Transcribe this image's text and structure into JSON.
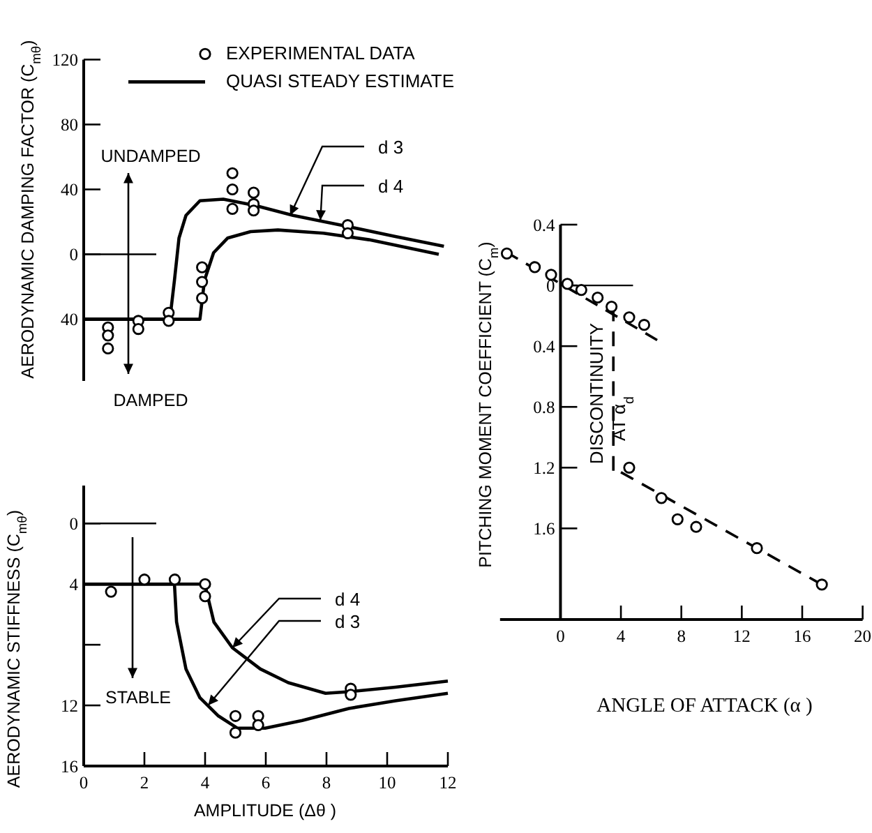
{
  "chart_data": [
    {
      "type": "line",
      "ylabel": "AERODYNAMIC DAMPING FACTOR (C$_{mθ}$)",
      "xlim": [
        0,
        12
      ],
      "ylim": [
        -78,
        120
      ],
      "yticks": [
        120,
        80,
        40,
        0,
        {
          "value": -40,
          "label": "40"
        }
      ],
      "tick_labels": "y",
      "legend": "top right",
      "ref_lines": [
        {
          "axis": "y",
          "value": 0
        }
      ],
      "annotations": [
        "UNDAMPED",
        "DAMPED",
        {
          "text": "d 3",
          "x": 6.8,
          "y": 24
        },
        {
          "text": "d 4",
          "x": 7.8,
          "y": 21
        }
      ],
      "series": [
        {
          "type": "scatter",
          "marker": "circle",
          "name": "EXPERIMENTAL DATA",
          "color": "#000000",
          "x": [
            0.8,
            0.8,
            0.8,
            1.8,
            1.8,
            2.8,
            2.8,
            3.9,
            3.9,
            3.9,
            4.9,
            4.9,
            4.9,
            5.6,
            5.6,
            5.6,
            8.7,
            8.7
          ],
          "values": [
            -45,
            -50,
            -58,
            -41,
            -46,
            -36,
            -41,
            -8,
            -17,
            -27,
            50,
            40,
            28,
            38,
            31,
            27,
            18,
            13
          ]
        },
        {
          "name": "QUASI STEADY ESTIMATE",
          "color": "#000000",
          "x": [
            0,
            2.84,
            2.99,
            3.14,
            3.37,
            3.83,
            4.6,
            5.67,
            6.9,
            8.74,
            10.27,
            11.87
          ],
          "values": [
            -40,
            -40,
            -16,
            10,
            24,
            33,
            34,
            30,
            24,
            17,
            11,
            5
          ]
        },
        {
          "color": "#000000",
          "x": [
            0,
            3.83,
            3.98,
            4.28,
            4.74,
            5.5,
            6.4,
            7.9,
            9.4,
            11.7
          ],
          "values": [
            -40,
            -40,
            -16,
            1,
            10,
            14,
            15,
            13,
            9,
            0
          ]
        }
      ]
    },
    {
      "type": "line",
      "xlabel": "AMPLITUDE (Δθ )",
      "ylabel": "AERODYNAMIC STIFFNESS (C$_{mθ}$)",
      "xlim": [
        0,
        12
      ],
      "xticks": [
        0,
        2,
        4,
        6,
        8,
        10,
        12
      ],
      "ylim": [
        16,
        -2.5
      ],
      "yticks": [
        0,
        4,
        {
          "value": 8,
          "label": null
        },
        12,
        16
      ],
      "ref_lines": [
        {
          "axis": "y",
          "value": 0
        }
      ],
      "annotations": [
        "STABLE",
        {
          "text": "d 4",
          "x": 4.9,
          "y": 8.2
        },
        {
          "text": "d 3",
          "x": 4.1,
          "y": 12.0
        }
      ],
      "series": [
        {
          "type": "scatter",
          "marker": "circle",
          "color": "#000000",
          "x": [
            0.9,
            2,
            3,
            4,
            4,
            5,
            5,
            5.75,
            5.75,
            8.8,
            8.8
          ],
          "values": [
            4.5,
            3.7,
            3.7,
            4,
            4.8,
            12.7,
            13.8,
            12.7,
            13.3,
            10.9,
            11.3
          ]
        },
        {
          "color": "#000000",
          "x": [
            0,
            3.99,
            4.29,
            4.9,
            5.82,
            6.74,
            7.97,
            8.74,
            10.27,
            12
          ],
          "values": [
            4,
            4,
            6.5,
            8.2,
            9.6,
            10.5,
            11.2,
            11.1,
            10.8,
            10.4
          ]
        },
        {
          "color": "#000000",
          "x": [
            0,
            2.99,
            3.06,
            3.37,
            3.83,
            4.44,
            5.06,
            5.98,
            7.2,
            8.74,
            10.27,
            12
          ],
          "values": [
            4,
            4,
            6.5,
            9.6,
            11.5,
            12.7,
            13.5,
            13.5,
            13.0,
            12.2,
            11.7,
            11.2
          ]
        }
      ]
    },
    {
      "type": "line",
      "xlabel": "ANGLE OF ATTACK (α )",
      "ylabel": "PITCHING MOMENT COEFFICIENT (C$_{m}$)",
      "xlim": [
        -4,
        20
      ],
      "xticks": [
        0,
        4,
        8,
        12,
        16,
        20
      ],
      "ylim": [
        -2.2,
        0.4
      ],
      "yticks": [
        {
          "value": 0.4,
          "label": "0.4"
        },
        0,
        {
          "value": -0.4,
          "label": "0.4"
        },
        {
          "value": -0.8,
          "label": "0.8"
        },
        {
          "value": -1.2,
          "label": "1.2"
        },
        {
          "value": -1.6,
          "label": "1.6"
        }
      ],
      "line_style": "dashed",
      "ref_lines": [
        {
          "axis": "y",
          "value": 0
        }
      ],
      "annotations": [
        "DISCONTINUITY AT α$_{d}$"
      ],
      "series": [
        {
          "type": "scatter",
          "marker": "circle",
          "color": "#000000",
          "x": [
            -3.55,
            -1.7,
            -0.62,
            0.46,
            1.38,
            2.46,
            3.38,
            4.55,
            5.54,
            4.55,
            6.68,
            7.75,
            8.98,
            13.0,
            17.3
          ],
          "values": [
            0.21,
            0.12,
            0.07,
            0.01,
            -0.03,
            -0.08,
            -0.14,
            -0.21,
            -0.26,
            -1.2,
            -1.4,
            -1.54,
            -1.59,
            -1.73,
            -1.97
          ]
        },
        {
          "color": "#000000",
          "x": [
            -3.6,
            6.4
          ],
          "values": [
            0.22,
            -0.36
          ]
        },
        {
          "color": "#000000",
          "x": [
            3.5,
            3.5
          ],
          "values": [
            -0.14,
            -1.22
          ]
        },
        {
          "color": "#000000",
          "x": [
            4.0,
            17.3
          ],
          "values": [
            -1.23,
            -1.97
          ]
        }
      ]
    }
  ]
}
